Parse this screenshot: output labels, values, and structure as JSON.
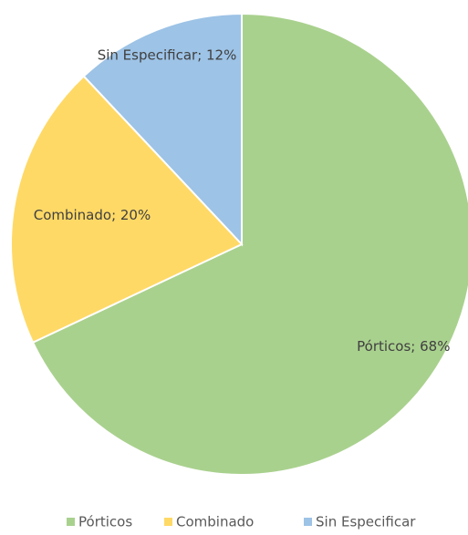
{
  "chart_data": {
    "type": "pie",
    "categories": [
      "Pórticos",
      "Combinado",
      "Sin Especificar"
    ],
    "values": [
      68,
      20,
      12
    ],
    "value_labels": [
      "Pórticos; 68%",
      "Combinado; 20%",
      "Sin Especificar; 12%"
    ],
    "colors": [
      "#a9d18e",
      "#ffd966",
      "#9dc3e6"
    ],
    "legend": "bottom"
  }
}
